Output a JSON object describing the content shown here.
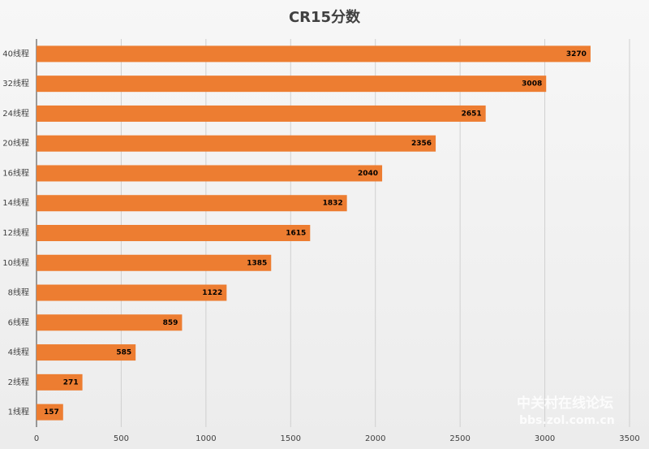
{
  "chart_data": {
    "type": "barh",
    "title": "CR15分数",
    "categories": [
      "40线程",
      "32线程",
      "24线程",
      "20线程",
      "16线程",
      "14线程",
      "12线程",
      "10线程",
      "8线程",
      "6线程",
      "4线程",
      "2线程",
      "1线程"
    ],
    "values": [
      3270,
      3008,
      2651,
      2356,
      2040,
      1832,
      1615,
      1385,
      1122,
      859,
      585,
      271,
      157
    ],
    "color": "#ed7d31",
    "xlim": [
      0,
      3500
    ],
    "xticks": [
      0,
      500,
      1000,
      1500,
      2000,
      2500,
      3000,
      3500
    ],
    "grid": true
  },
  "watermark": {
    "text": "中关村在线论坛",
    "url": "bbs.zol.com.cn"
  }
}
